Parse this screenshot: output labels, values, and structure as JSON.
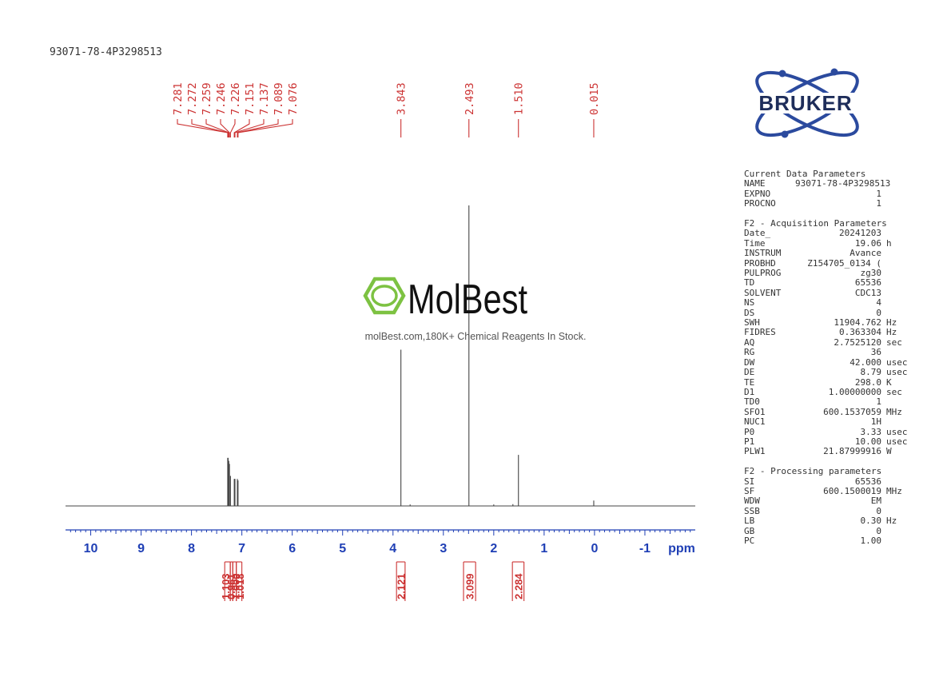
{
  "sample_id": "93071-78-4P3298513",
  "brand": {
    "name": "BRUKER",
    "primary_color": "#2b4a9e"
  },
  "watermark": {
    "name": "MolBest",
    "tagline": "molBest.com,180K+ Chemical Reagents In Stock.",
    "accent": "#7dc242"
  },
  "colors": {
    "peak_labels": "#cc3333",
    "axis": "#1f3fb5",
    "integrals": "#cc3333",
    "trace": "#444444"
  },
  "chart_data": {
    "type": "line",
    "xlabel": "ppm",
    "xlim": [
      10.5,
      -2.0
    ],
    "x_reversed": true,
    "ylim": [
      0,
      100
    ],
    "x_ticks": [
      "10",
      "9",
      "8",
      "7",
      "6",
      "5",
      "4",
      "3",
      "2",
      "1",
      "0",
      "-1"
    ],
    "x_tick_values": [
      10,
      9,
      8,
      7,
      6,
      5,
      4,
      3,
      2,
      1,
      0,
      -1
    ],
    "peaks": [
      {
        "ppm": 7.281,
        "height": 16
      },
      {
        "ppm": 7.272,
        "height": 16
      },
      {
        "ppm": 7.259,
        "height": 15
      },
      {
        "ppm": 7.246,
        "height": 14
      },
      {
        "ppm": 7.226,
        "height": 10
      },
      {
        "ppm": 7.151,
        "height": 9
      },
      {
        "ppm": 7.137,
        "height": 9
      },
      {
        "ppm": 7.089,
        "height": 9
      },
      {
        "ppm": 7.076,
        "height": 8.5
      },
      {
        "ppm": 3.843,
        "height": 52
      },
      {
        "ppm": 2.493,
        "height": 100
      },
      {
        "ppm": 1.51,
        "height": 17
      },
      {
        "ppm": 0.015,
        "height": 1.8
      },
      {
        "ppm": 3.66,
        "height": 0.5
      },
      {
        "ppm": 2.0,
        "height": 0.5
      },
      {
        "ppm": 1.62,
        "height": 0.6
      }
    ],
    "peak_labels": [
      {
        "group": "aromatic",
        "labels": [
          "7.281",
          "7.272",
          "7.259",
          "7.246",
          "7.226",
          "7.151",
          "7.137",
          "7.089",
          "7.076"
        ],
        "ppm": [
          7.281,
          7.272,
          7.259,
          7.246,
          7.226,
          7.151,
          7.137,
          7.089,
          7.076
        ]
      },
      {
        "group": "s1",
        "labels": [
          "3.843"
        ],
        "ppm": [
          3.843
        ]
      },
      {
        "group": "s2",
        "labels": [
          "2.493"
        ],
        "ppm": [
          2.493
        ]
      },
      {
        "group": "s3",
        "labels": [
          "1.510"
        ],
        "ppm": [
          1.51
        ]
      },
      {
        "group": "s4",
        "labels": [
          "0.015"
        ],
        "ppm": [
          0.015
        ]
      }
    ],
    "integrals": [
      {
        "value": "1.103",
        "from": 7.34,
        "to": 7.23
      },
      {
        "value": "0.961",
        "from": 7.23,
        "to": 7.18
      },
      {
        "value": "1.000",
        "from": 7.18,
        "to": 7.11
      },
      {
        "value": "1.018",
        "from": 7.11,
        "to": 7.0
      },
      {
        "value": "2.121",
        "from": 3.93,
        "to": 3.76
      },
      {
        "value": "3.099",
        "from": 2.6,
        "to": 2.36
      },
      {
        "value": "2.284",
        "from": 1.63,
        "to": 1.4
      }
    ]
  },
  "parameters": {
    "current": {
      "title": "Current Data Parameters",
      "rows": [
        {
          "k": "NAME",
          "v": "93071-78-4P3298513",
          "u": ""
        },
        {
          "k": "EXPNO",
          "v": "1",
          "u": ""
        },
        {
          "k": "PROCNO",
          "v": "1",
          "u": ""
        }
      ]
    },
    "acquisition": {
      "title": "F2 - Acquisition Parameters",
      "rows": [
        {
          "k": "Date_",
          "v": "20241203",
          "u": ""
        },
        {
          "k": "Time",
          "v": "19.06",
          "u": "h"
        },
        {
          "k": "INSTRUM",
          "v": "Avance",
          "u": ""
        },
        {
          "k": "PROBHD",
          "v": "Z154705_0134 (",
          "u": ""
        },
        {
          "k": "PULPROG",
          "v": "zg30",
          "u": ""
        },
        {
          "k": "TD",
          "v": "65536",
          "u": ""
        },
        {
          "k": "SOLVENT",
          "v": "CDC13",
          "u": ""
        },
        {
          "k": "NS",
          "v": "4",
          "u": ""
        },
        {
          "k": "DS",
          "v": "0",
          "u": ""
        },
        {
          "k": "SWH",
          "v": "11904.762",
          "u": "Hz"
        },
        {
          "k": "FIDRES",
          "v": "0.363304",
          "u": "Hz"
        },
        {
          "k": "AQ",
          "v": "2.7525120",
          "u": "sec"
        },
        {
          "k": "RG",
          "v": "36",
          "u": ""
        },
        {
          "k": "DW",
          "v": "42.000",
          "u": "usec"
        },
        {
          "k": "DE",
          "v": "8.79",
          "u": "usec"
        },
        {
          "k": "TE",
          "v": "298.0",
          "u": "K"
        },
        {
          "k": "D1",
          "v": "1.00000000",
          "u": "sec"
        },
        {
          "k": "TD0",
          "v": "1",
          "u": ""
        },
        {
          "k": "SFO1",
          "v": "600.1537059",
          "u": "MHz"
        },
        {
          "k": "NUC1",
          "v": "1H",
          "u": ""
        },
        {
          "k": "P0",
          "v": "3.33",
          "u": "usec"
        },
        {
          "k": "P1",
          "v": "10.00",
          "u": "usec"
        },
        {
          "k": "PLW1",
          "v": "21.87999916",
          "u": "W"
        }
      ]
    },
    "processing": {
      "title": "F2 - Processing parameters",
      "rows": [
        {
          "k": "SI",
          "v": "65536",
          "u": ""
        },
        {
          "k": "SF",
          "v": "600.1500019",
          "u": "MHz"
        },
        {
          "k": "WDW",
          "v": "EM",
          "u": ""
        },
        {
          "k": "SSB",
          "v": "0",
          "u": ""
        },
        {
          "k": "LB",
          "v": "0.30",
          "u": "Hz"
        },
        {
          "k": "GB",
          "v": "0",
          "u": ""
        },
        {
          "k": "PC",
          "v": "1.00",
          "u": ""
        }
      ]
    }
  }
}
